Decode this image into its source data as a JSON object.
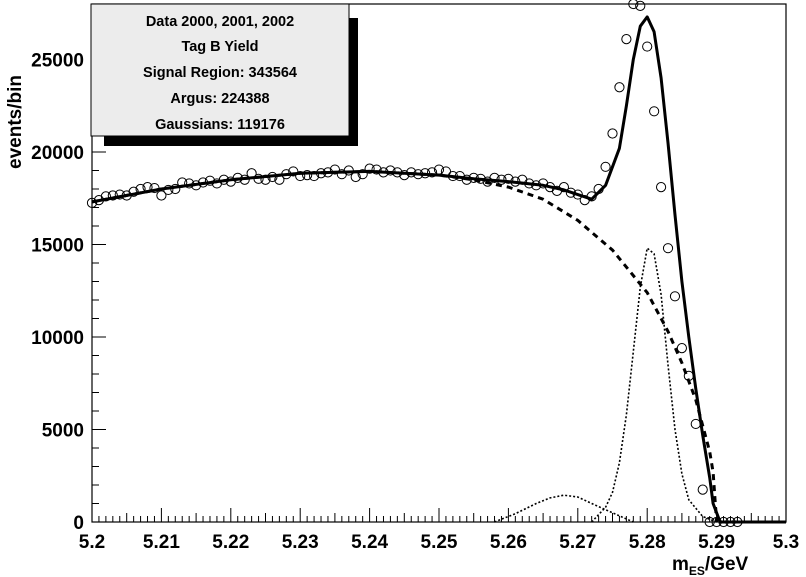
{
  "chart_data": {
    "type": "scatter",
    "title": "",
    "xlabel_main": "m",
    "xlabel_sub": "ES",
    "xlabel_unit": "/GeV",
    "ylabel": "events/bin",
    "xlim": [
      5.2,
      5.3
    ],
    "ylim": [
      0,
      28000
    ],
    "x_ticks": [
      "5.2",
      "5.21",
      "5.22",
      "5.23",
      "5.24",
      "5.25",
      "5.26",
      "5.27",
      "5.28",
      "5.29",
      "5.3"
    ],
    "y_ticks": [
      "0",
      "5000",
      "10000",
      "15000",
      "20000",
      "25000"
    ],
    "grid": false,
    "stats_box": {
      "lines": [
        "Data 2000, 2001, 2002",
        "Tag B Yield",
        "Signal Region: 343564",
        "Argus: 224388",
        "Gaussians: 119176"
      ]
    },
    "series": [
      {
        "style": "open-circles",
        "x": [
          5.2,
          5.201,
          5.202,
          5.203,
          5.204,
          5.205,
          5.206,
          5.207,
          5.208,
          5.209,
          5.21,
          5.211,
          5.212,
          5.213,
          5.214,
          5.215,
          5.216,
          5.217,
          5.218,
          5.219,
          5.22,
          5.221,
          5.222,
          5.223,
          5.224,
          5.225,
          5.226,
          5.227,
          5.228,
          5.229,
          5.23,
          5.231,
          5.232,
          5.233,
          5.234,
          5.235,
          5.236,
          5.237,
          5.238,
          5.239,
          5.24,
          5.241,
          5.242,
          5.243,
          5.244,
          5.245,
          5.246,
          5.247,
          5.248,
          5.249,
          5.25,
          5.251,
          5.252,
          5.253,
          5.254,
          5.255,
          5.256,
          5.257,
          5.258,
          5.259,
          5.26,
          5.261,
          5.262,
          5.263,
          5.264,
          5.265,
          5.266,
          5.267,
          5.268,
          5.269,
          5.27,
          5.271,
          5.272,
          5.273,
          5.274,
          5.275,
          5.276,
          5.277,
          5.278,
          5.279,
          5.28,
          5.281,
          5.282,
          5.283,
          5.284,
          5.285,
          5.286,
          5.287,
          5.288,
          5.289,
          5.29,
          5.291,
          5.292,
          5.293
        ],
        "y": [
          17250,
          17400,
          17600,
          17650,
          17700,
          17650,
          17850,
          18000,
          18100,
          18050,
          17650,
          17950,
          18000,
          18350,
          18300,
          18200,
          18350,
          18450,
          18300,
          18500,
          18400,
          18600,
          18500,
          18850,
          18550,
          18500,
          18650,
          18500,
          18800,
          18950,
          18700,
          18750,
          18700,
          18850,
          18900,
          19050,
          18800,
          19000,
          18650,
          18800,
          19100,
          19050,
          18900,
          19000,
          18900,
          18750,
          18900,
          18800,
          18850,
          18900,
          19050,
          18950,
          18700,
          18700,
          18500,
          18600,
          18550,
          18400,
          18600,
          18500,
          18550,
          18400,
          18500,
          18300,
          18200,
          18300,
          18100,
          17900,
          18100,
          17800,
          17700,
          17400,
          17600,
          18000,
          19200,
          21000,
          23500,
          26100,
          28000,
          27900,
          25700,
          22200,
          18100,
          14800,
          12200,
          9400,
          7900,
          5300,
          1750,
          0,
          0,
          0,
          0,
          0
        ]
      },
      {
        "style": "solid-thick",
        "x": [
          5.2,
          5.21,
          5.22,
          5.23,
          5.24,
          5.25,
          5.255,
          5.26,
          5.265,
          5.268,
          5.27,
          5.272,
          5.274,
          5.276,
          5.277,
          5.278,
          5.279,
          5.28,
          5.281,
          5.282,
          5.283,
          5.284,
          5.285,
          5.286,
          5.287,
          5.288,
          5.289,
          5.2895,
          5.2905,
          5.292,
          5.3
        ],
        "y": [
          17300,
          18000,
          18500,
          18850,
          18950,
          18750,
          18550,
          18400,
          18200,
          17950,
          17700,
          17450,
          18200,
          20200,
          22500,
          25000,
          26800,
          27300,
          26500,
          24000,
          20500,
          16600,
          13000,
          10000,
          7200,
          4700,
          2400,
          1000,
          0,
          0,
          0
        ]
      },
      {
        "style": "dashed-argus",
        "x": [
          5.2,
          5.21,
          5.22,
          5.23,
          5.24,
          5.25,
          5.255,
          5.26,
          5.265,
          5.27,
          5.275,
          5.28,
          5.283,
          5.285,
          5.287,
          5.289,
          5.2895,
          5.29
        ],
        "y": [
          17300,
          18000,
          18500,
          18850,
          18950,
          18750,
          18500,
          18100,
          17450,
          16300,
          14700,
          12400,
          10300,
          8600,
          6600,
          3800,
          2700,
          0
        ]
      },
      {
        "style": "dotted-gaussian-narrow",
        "x": [
          5.272,
          5.274,
          5.275,
          5.276,
          5.277,
          5.278,
          5.279,
          5.28,
          5.281,
          5.282,
          5.283,
          5.284,
          5.285,
          5.286,
          5.288,
          5.29
        ],
        "y": [
          0,
          800,
          1600,
          3200,
          5800,
          9200,
          12700,
          14800,
          14500,
          12300,
          8500,
          5000,
          2600,
          1200,
          300,
          0
        ]
      },
      {
        "style": "dotted-gaussian-wide",
        "x": [
          5.258,
          5.261,
          5.264,
          5.266,
          5.268,
          5.27,
          5.272,
          5.275,
          5.278
        ],
        "y": [
          0,
          450,
          1000,
          1300,
          1450,
          1350,
          1000,
          500,
          0
        ]
      }
    ]
  }
}
